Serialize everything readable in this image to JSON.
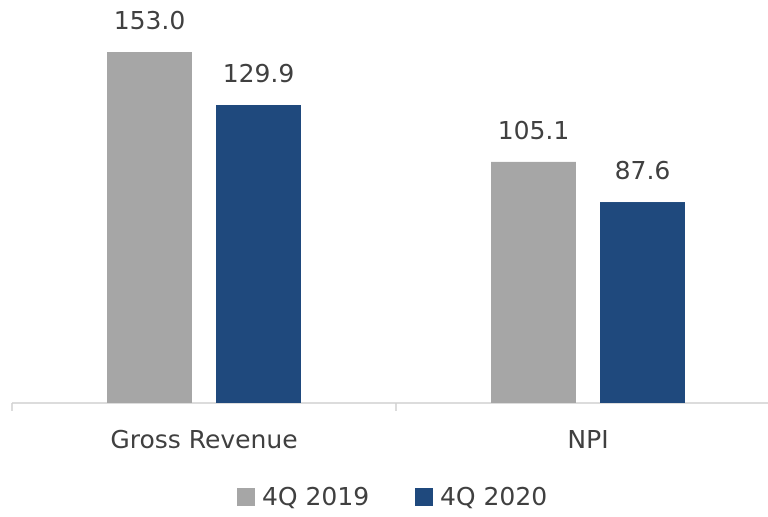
{
  "chart_data": {
    "type": "bar",
    "categories": [
      "Gross Revenue",
      "NPI"
    ],
    "series": [
      {
        "name": "4Q 2019",
        "color": "#a6a6a6",
        "values": [
          153.0,
          105.1
        ],
        "value_labels": [
          "153.0",
          "105.1"
        ]
      },
      {
        "name": "4Q 2020",
        "color": "#1f497d",
        "values": [
          129.9,
          87.6
        ],
        "value_labels": [
          "129.9",
          "87.6"
        ]
      }
    ]
  }
}
